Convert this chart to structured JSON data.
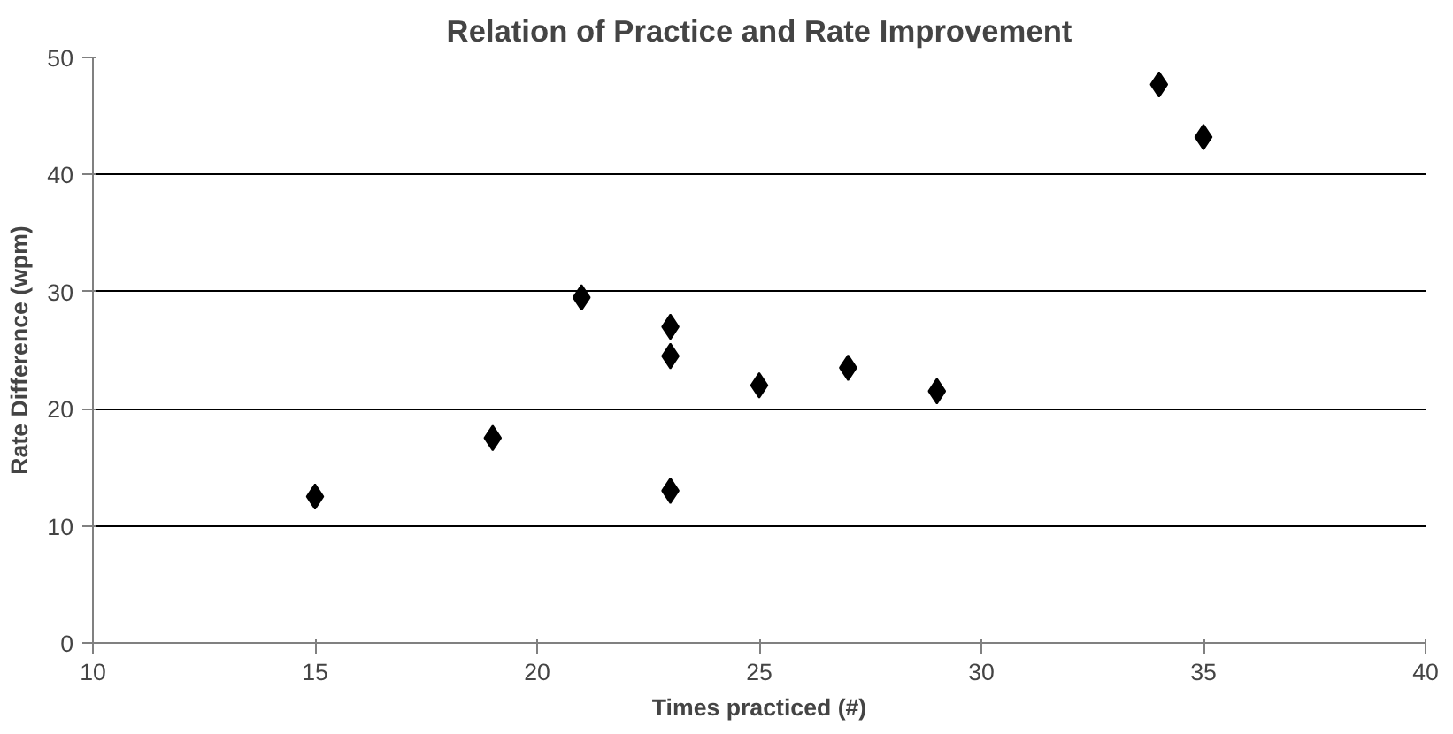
{
  "chart_data": {
    "type": "scatter",
    "title": "Relation of Practice and Rate Improvement",
    "xlabel": "Times practiced (#)",
    "ylabel": "Rate Difference (wpm)",
    "x": [
      15,
      19,
      21,
      23,
      23,
      23,
      25,
      27,
      29,
      34,
      35
    ],
    "series": [
      {
        "color": "#000000",
        "values": [
          12.5,
          17.5,
          29.5,
          27,
          24.5,
          13,
          22,
          23.5,
          21.5,
          47.7,
          43.2
        ]
      }
    ],
    "xlim": [
      10,
      40
    ],
    "xticks": [
      10,
      15,
      20,
      25,
      30,
      35,
      40
    ],
    "ylim": [
      0,
      50
    ],
    "yticks": [
      0,
      10,
      20,
      30,
      40,
      50
    ],
    "grid": "y",
    "marker": "diamond"
  }
}
